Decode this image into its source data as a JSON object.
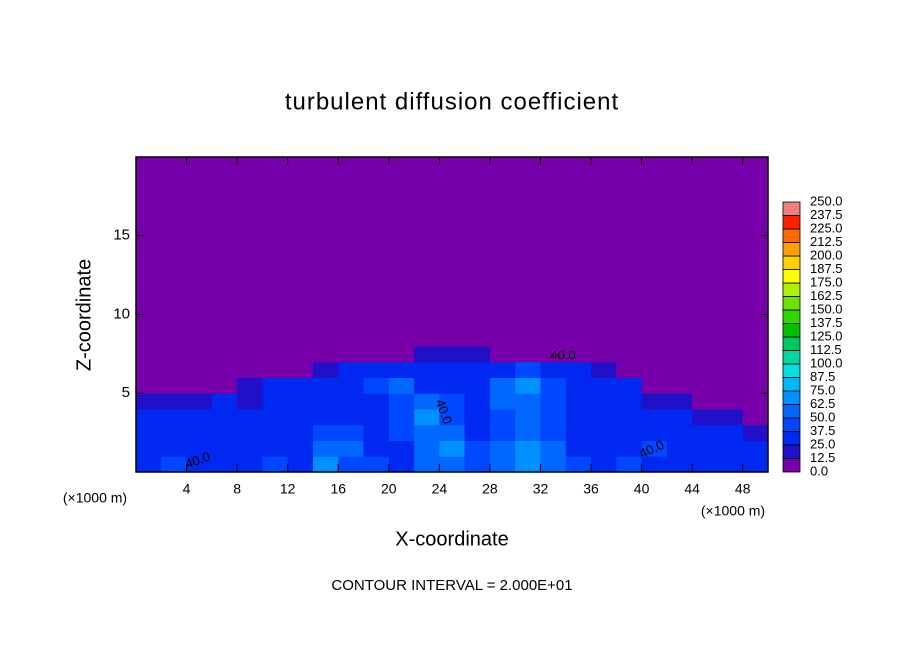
{
  "chart_data": {
    "type": "heatmap",
    "title": "turbulent diffusion coefficient",
    "xlabel": "X-coordinate",
    "ylabel": "Z-coordinate",
    "x_units": "(×1000 m)",
    "y_units": "(×1000 m)",
    "footer": "CONTOUR INTERVAL = 2.000E+01",
    "annotations": [
      "40.0",
      "40.0",
      "40.0",
      "40.0"
    ],
    "xlim": [
      0,
      50
    ],
    "ylim": [
      0,
      20
    ],
    "xticks": [
      4,
      8,
      12,
      16,
      20,
      24,
      28,
      32,
      36,
      40,
      44,
      48
    ],
    "yticks": [
      5,
      10,
      15
    ],
    "x_edges": [
      0,
      2,
      4,
      6,
      8,
      10,
      12,
      14,
      16,
      18,
      20,
      22,
      24,
      26,
      28,
      30,
      32,
      34,
      36,
      38,
      40,
      42,
      44,
      46,
      48,
      50
    ],
    "z_edges": [
      0,
      1,
      2,
      3,
      4,
      5,
      6,
      7,
      8,
      20
    ],
    "values": [
      [
        30,
        40,
        35,
        30,
        35,
        40,
        30,
        70,
        45,
        40,
        35,
        50,
        60,
        45,
        55,
        70,
        60,
        40,
        35,
        40,
        30,
        35,
        30,
        35,
        30
      ],
      [
        35,
        30,
        25,
        30,
        35,
        30,
        35,
        60,
        50,
        30,
        35,
        55,
        65,
        40,
        50,
        65,
        50,
        35,
        30,
        35,
        40,
        30,
        35,
        30,
        35
      ],
      [
        30,
        25,
        30,
        35,
        30,
        35,
        30,
        45,
        40,
        30,
        40,
        60,
        50,
        35,
        45,
        55,
        45,
        35,
        30,
        30,
        35,
        30,
        30,
        25,
        20
      ],
      [
        25,
        30,
        25,
        30,
        25,
        30,
        35,
        30,
        35,
        30,
        40,
        65,
        40,
        30,
        45,
        60,
        40,
        35,
        30,
        30,
        25,
        25,
        20,
        15,
        10
      ],
      [
        15,
        20,
        20,
        25,
        20,
        30,
        30,
        35,
        30,
        35,
        45,
        55,
        40,
        35,
        60,
        55,
        45,
        30,
        35,
        30,
        20,
        15,
        10,
        8,
        5
      ],
      [
        8,
        10,
        10,
        12,
        15,
        25,
        30,
        30,
        35,
        40,
        50,
        35,
        35,
        30,
        50,
        65,
        40,
        35,
        30,
        25,
        12,
        8,
        5,
        5,
        5
      ],
      [
        5,
        5,
        5,
        5,
        5,
        8,
        12,
        20,
        25,
        30,
        30,
        35,
        30,
        30,
        35,
        40,
        30,
        25,
        20,
        10,
        5,
        5,
        5,
        5,
        5
      ],
      [
        5,
        5,
        5,
        5,
        5,
        5,
        5,
        5,
        8,
        10,
        12,
        15,
        18,
        14,
        12,
        10,
        8,
        5,
        5,
        5,
        5,
        5,
        5,
        5,
        5
      ],
      [
        5,
        5,
        5,
        5,
        5,
        5,
        5,
        5,
        5,
        5,
        5,
        5,
        5,
        5,
        5,
        5,
        5,
        5,
        5,
        5,
        5,
        5,
        5,
        5,
        5
      ]
    ],
    "colorbar": {
      "ticks": [
        {
          "value": 0,
          "label": "0.0"
        },
        12.5,
        {
          "value": 25,
          "label": "25.0"
        },
        37.5,
        {
          "value": 50,
          "label": "50.0"
        },
        62.5,
        {
          "value": 75,
          "label": "75.0"
        },
        87.5,
        {
          "value": 100,
          "label": "100.0"
        },
        112.5,
        {
          "value": 125,
          "label": "125.0"
        },
        137.5,
        {
          "value": 150,
          "label": "150.0"
        },
        162.5,
        {
          "value": 175,
          "label": "175.0"
        },
        187.5,
        {
          "value": 200,
          "label": "200.0"
        },
        212.5,
        {
          "value": 225,
          "label": "225.0"
        },
        237.5,
        {
          "value": 250,
          "label": "250.0"
        }
      ],
      "colors": [
        "#7800aa",
        "#2010c8",
        "#0028f0",
        "#0048ff",
        "#0068ff",
        "#0090ff",
        "#00b8ff",
        "#00e0e0",
        "#00d8a0",
        "#00c860",
        "#00c000",
        "#30d800",
        "#70e000",
        "#b0f000",
        "#ffff00",
        "#ffd000",
        "#ffa000",
        "#ff6a00",
        "#ff2000",
        "#f08080"
      ]
    }
  }
}
